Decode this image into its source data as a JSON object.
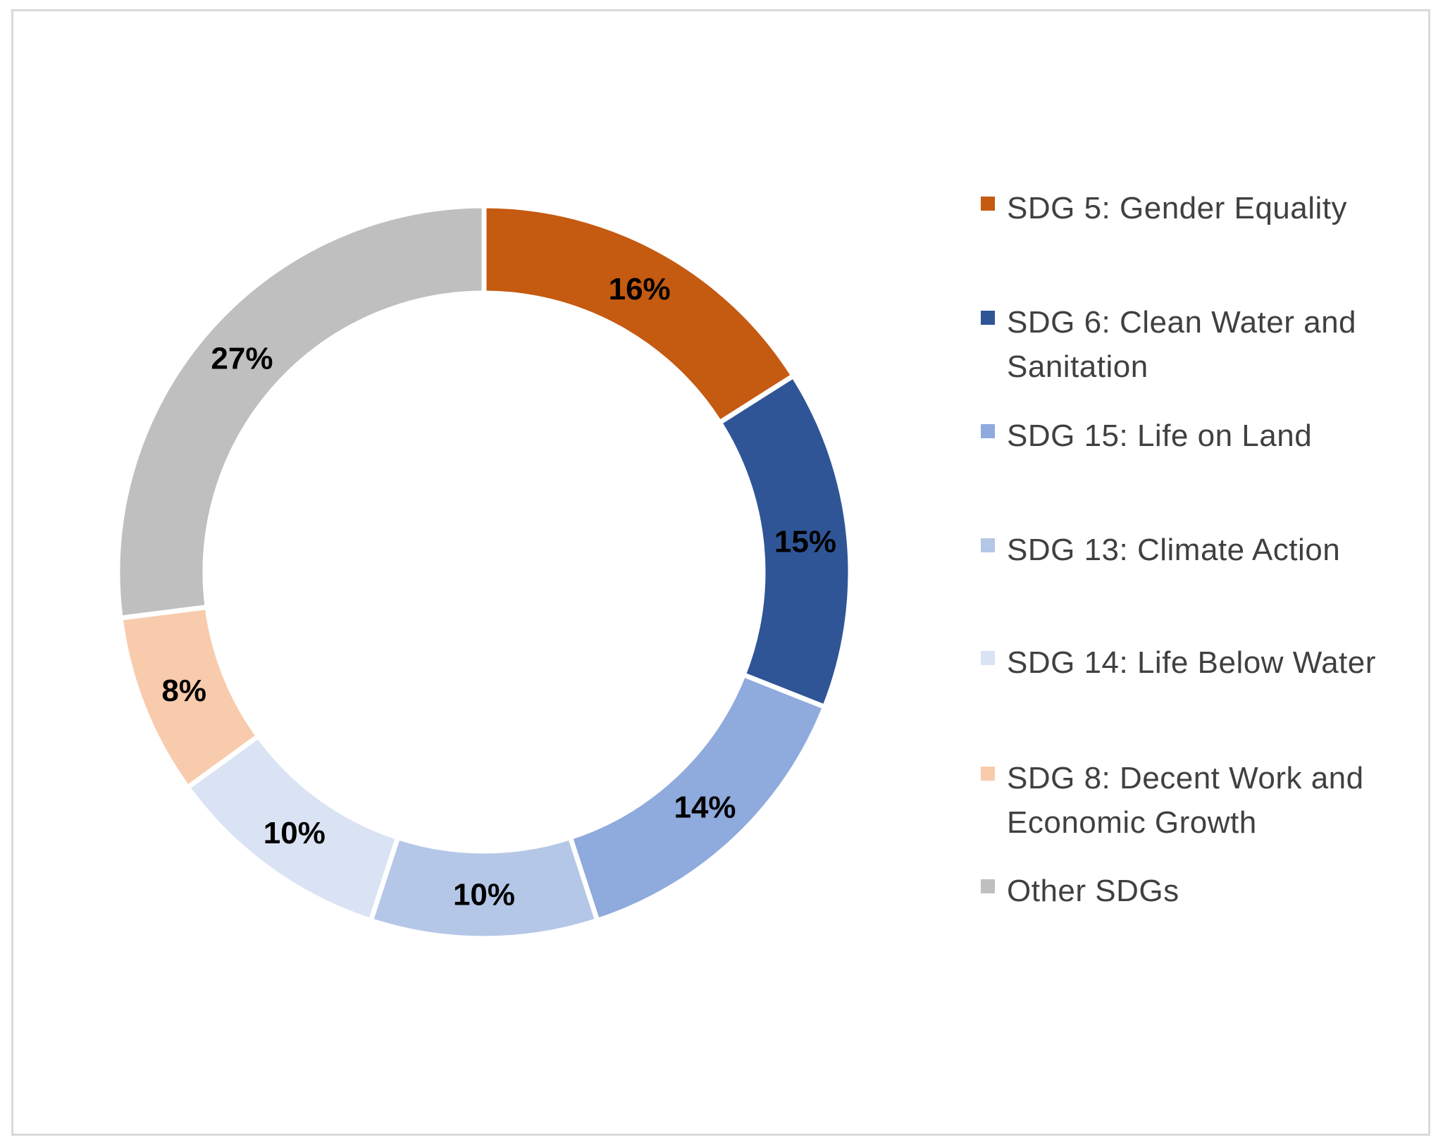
{
  "chart_data": {
    "type": "pie",
    "donut": true,
    "categories": [
      "SDG 5: Gender Equality",
      "SDG 6: Clean Water and Sanitation",
      "SDG 15: Life on Land",
      "SDG 13: Climate Action",
      "SDG 14: Life Below Water",
      "SDG 8: Decent Work and Economic Growth",
      "Other SDGs"
    ],
    "values": [
      16,
      15,
      14,
      10,
      10,
      8,
      27
    ],
    "labels": [
      "16%",
      "15%",
      "14%",
      "10%",
      "10%",
      "8%",
      "27%"
    ],
    "colors": [
      "#C55A11",
      "#2F5597",
      "#8FAADC",
      "#B4C7E7",
      "#DAE3F3",
      "#F8CBAD",
      "#BFBFBF"
    ],
    "unit": "%",
    "legend_placement": "right",
    "title": ""
  }
}
